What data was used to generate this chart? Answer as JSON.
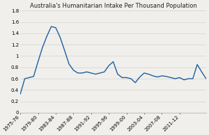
{
  "title": "Australia's Humanitarian Intake Per Thousand Population",
  "x_labels": [
    "1975-76",
    "1979-80",
    "1983-84",
    "1987-88",
    "1991-92",
    "1995-96",
    "1999-00",
    "2003-04",
    "2007-08",
    "2011-12"
  ],
  "ylim": [
    0,
    1.8
  ],
  "yticks": [
    0,
    0.2,
    0.4,
    0.6,
    0.8,
    1.0,
    1.2,
    1.4,
    1.6,
    1.8
  ],
  "ytick_labels": [
    "0",
    "0.2",
    "0.4",
    "0.6",
    "0.8",
    "1",
    "1.2",
    "1.4",
    "1.6",
    "1.8"
  ],
  "line_color": "#1e5fa0",
  "line_width": 1.0,
  "background_color": "#f0efeb",
  "grid_color": "#d8d8d4",
  "title_fontsize": 6.0,
  "tick_fontsize": 5.0,
  "values": [
    0.33,
    0.6,
    0.62,
    0.64,
    0.9,
    1.15,
    1.35,
    1.52,
    1.5,
    1.33,
    1.1,
    0.86,
    0.75,
    0.7,
    0.7,
    0.72,
    0.7,
    0.68,
    0.7,
    0.72,
    0.83,
    0.9,
    0.68,
    0.62,
    0.62,
    0.6,
    0.53,
    0.63,
    0.7,
    0.68,
    0.65,
    0.63,
    0.65,
    0.64,
    0.62,
    0.6,
    0.62,
    0.58,
    0.6,
    0.6,
    0.85,
    0.72,
    0.6
  ],
  "x_tick_positions": [
    0,
    4,
    8,
    12,
    16,
    20,
    24,
    28,
    32,
    36
  ]
}
